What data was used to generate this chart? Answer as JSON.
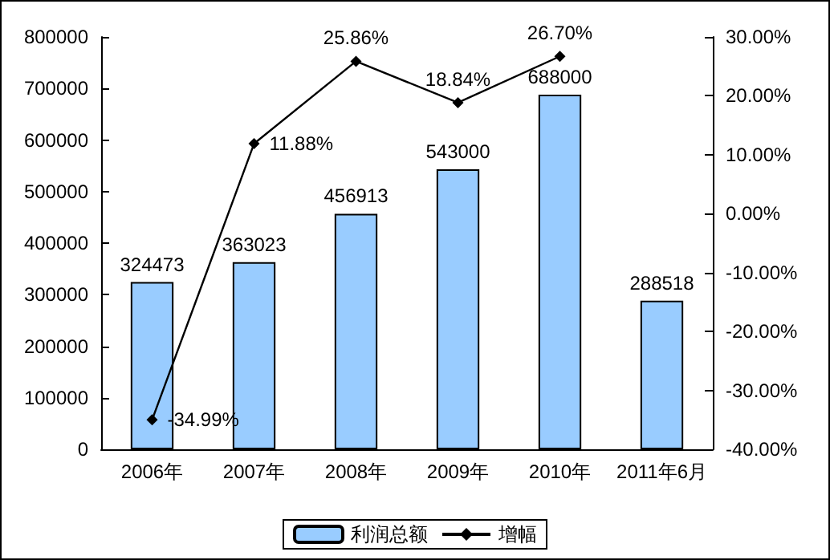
{
  "chart_data": {
    "type": "bar",
    "categories": [
      "2006年",
      "2007年",
      "2008年",
      "2009年",
      "2010年",
      "2011年6月"
    ],
    "series": [
      {
        "name": "利润总额",
        "color": "#99ccff",
        "values": [
          324473,
          363023,
          456913,
          543000,
          688000,
          288518
        ]
      },
      {
        "name": "增幅",
        "type": "line",
        "axis": "y2",
        "color": "#000000",
        "values": [
          -34.99,
          11.88,
          25.86,
          18.84,
          26.7,
          null
        ],
        "value_labels": [
          "-34.99%",
          "11.88%",
          "25.86%",
          "18.84%",
          "26.70%",
          null
        ]
      }
    ],
    "data_labels": true,
    "marker": "diamond",
    "legend": "bottom",
    "grid": false,
    "ylim": [
      0,
      800000
    ],
    "yticks": [
      0,
      100000,
      200000,
      300000,
      400000,
      500000,
      600000,
      700000,
      800000
    ],
    "y2lim": [
      -40,
      30
    ],
    "y2ticks": [
      {
        "value": -40,
        "label": "-40.00%"
      },
      {
        "value": -30,
        "label": "-30.00%"
      },
      {
        "value": -20,
        "label": "-20.00%"
      },
      {
        "value": -10,
        "label": "-10.00%"
      },
      {
        "value": 0,
        "label": "0.00%"
      },
      {
        "value": 10,
        "label": "10.00%"
      },
      {
        "value": 20,
        "label": "20.00%"
      },
      {
        "value": 30,
        "label": "30.00%"
      }
    ]
  }
}
